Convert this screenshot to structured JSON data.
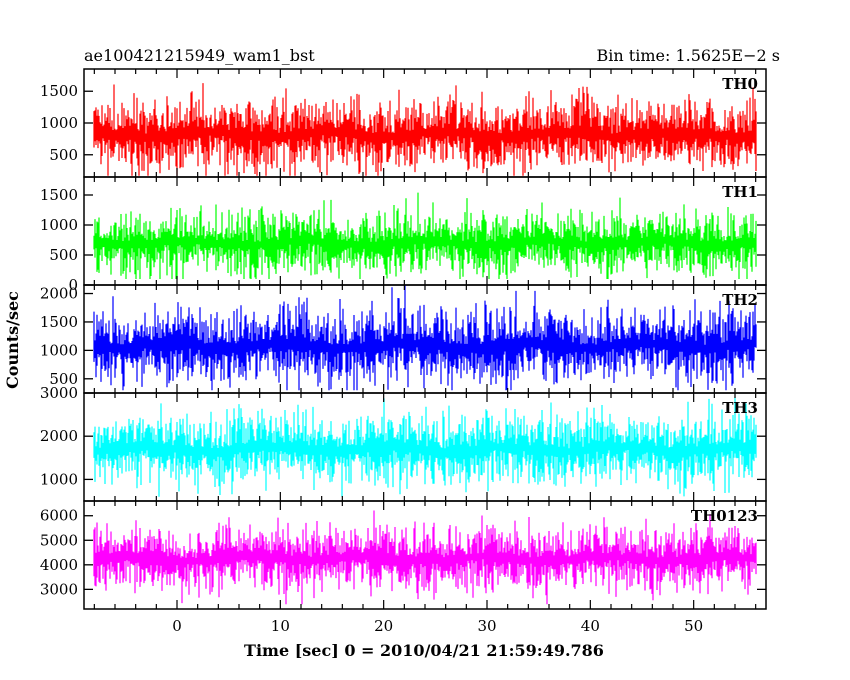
{
  "chart_data": {
    "type": "line",
    "title_left": "ae100421215949_wam1_bst",
    "title_right": "Bin time: 1.5625E−2 s",
    "xlabel": "Time [sec] 0 = 2010/04/21 21:59:49.786",
    "ylabel": "Counts/sec",
    "xlim": [
      -9,
      57
    ],
    "xticks": [
      0,
      10,
      20,
      30,
      40,
      50
    ],
    "xtick_labels": [
      "0",
      "10",
      "20",
      "30",
      "40",
      "50"
    ],
    "data_x_range": [
      -8,
      56
    ],
    "panels": [
      {
        "name": "TH0",
        "color": "#ff0000",
        "ylim": [
          150,
          1850
        ],
        "yticks": [
          500,
          1000,
          1500
        ],
        "ytick_labels": [
          "500",
          "1000",
          "1500"
        ],
        "mean": 820,
        "spread": 330,
        "clip_low": 170,
        "clip_high": 1850
      },
      {
        "name": "TH1",
        "color": "#00ff00",
        "ylim": [
          0,
          1800
        ],
        "yticks": [
          0,
          500,
          1000,
          1500
        ],
        "ytick_labels": [
          "0",
          "500",
          "1000",
          "1500"
        ],
        "mean": 700,
        "spread": 320,
        "clip_low": 100,
        "clip_high": 1800
      },
      {
        "name": "TH2",
        "color": "#0000ff",
        "ylim": [
          250,
          2150
        ],
        "yticks": [
          500,
          1000,
          1500,
          2000
        ],
        "ytick_labels": [
          "500",
          "1000",
          "1500",
          "2000"
        ],
        "mean": 1080,
        "spread": 390,
        "clip_low": 300,
        "clip_high": 2150
      },
      {
        "name": "TH3",
        "color": "#00ffff",
        "ylim": [
          500,
          3000
        ],
        "yticks": [
          1000,
          2000,
          3000
        ],
        "ytick_labels": [
          "1000",
          "2000",
          "3000"
        ],
        "mean": 1700,
        "spread": 480,
        "clip_low": 600,
        "clip_high": 3000
      },
      {
        "name": "TH0123",
        "color": "#ff00ff",
        "ylim": [
          2200,
          6600
        ],
        "yticks": [
          3000,
          4000,
          5000,
          6000
        ],
        "ytick_labels": [
          "3000",
          "4000",
          "5000",
          "6000"
        ],
        "mean": 4250,
        "spread": 780,
        "clip_low": 2250,
        "clip_high": 6600
      }
    ]
  }
}
